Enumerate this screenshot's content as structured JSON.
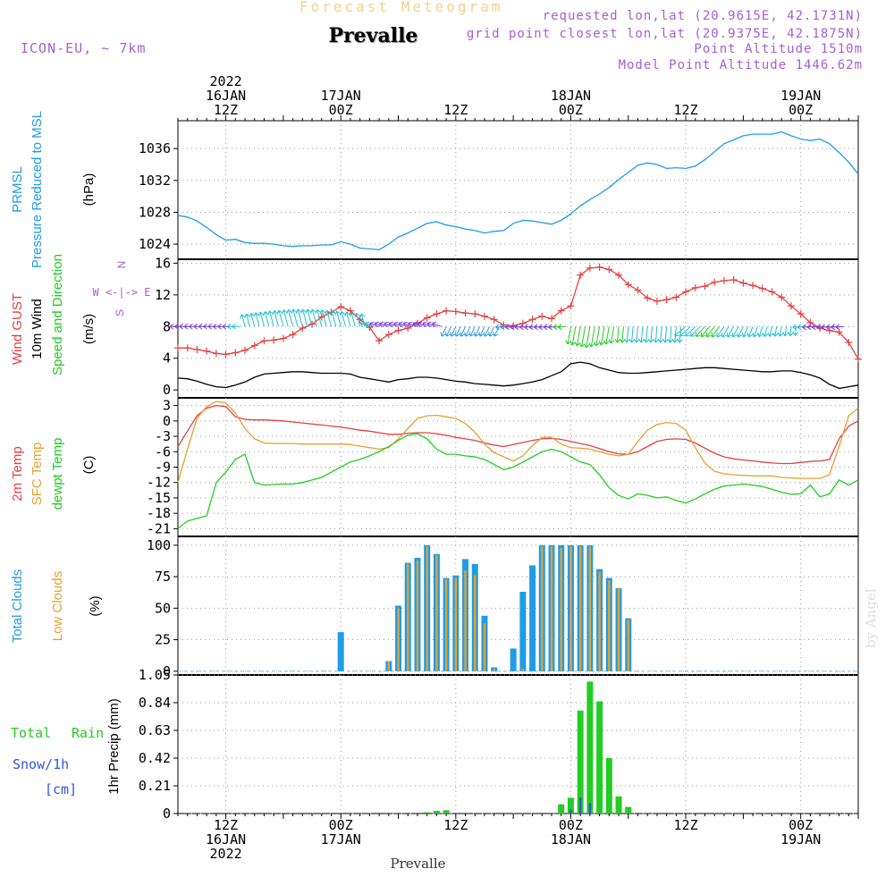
{
  "header": {
    "subtitle": "Forecast Meteogram",
    "title": "Prevalle",
    "model": "ICON-EU, ~ 7km",
    "requested": "requested lon,lat (20.9615E, 42.1731N)",
    "gridpoint": "grid point closest lon,lat (20.9375E, 42.1875N)",
    "point_alt": "Point Altitude 1510m",
    "model_alt": "Model Point Altitude 1446.62m",
    "footer": "Prevalle",
    "watermark": "by Angel"
  },
  "time_axis": {
    "top": [
      {
        "lines": [
          "2022",
          "16JAN",
          "12Z"
        ],
        "t": 12
      },
      {
        "lines": [
          "17JAN",
          "00Z"
        ],
        "t": 24
      },
      {
        "lines": [
          "12Z"
        ],
        "t": 36
      },
      {
        "lines": [
          "18JAN",
          "00Z"
        ],
        "t": 48
      },
      {
        "lines": [
          "12Z"
        ],
        "t": 60
      },
      {
        "lines": [
          "19JAN",
          "00Z"
        ],
        "t": 72
      }
    ],
    "bottom": [
      {
        "lines": [
          "12Z",
          "16JAN",
          "2022"
        ],
        "t": 12
      },
      {
        "lines": [
          "00Z",
          "17JAN"
        ],
        "t": 24
      },
      {
        "lines": [
          "12Z"
        ],
        "t": 36
      },
      {
        "lines": [
          "00Z",
          "18JAN"
        ],
        "t": 48
      },
      {
        "lines": [
          "12Z"
        ],
        "t": 60
      },
      {
        "lines": [
          "00Z",
          "19JAN"
        ],
        "t": 72
      }
    ]
  },
  "colors": {
    "prmsl": "#1f9ce6",
    "gust": "#e64040",
    "wind": "#000000",
    "dir": "#22cc22",
    "t2m": "#e64040",
    "sfc": "#e6a030",
    "dewpt": "#22cc22",
    "total_clouds": "#1f9ce6",
    "low_clouds": "#e6a030",
    "rain": "#22cc22",
    "snow": "#3355dd",
    "purple": "#a35fd6"
  },
  "panel_labels": {
    "p1": [
      "PRMSL",
      "Pressure Reduced to MSL"
    ],
    "p1_unit": "(hPa)",
    "p2": [
      "Wind GUST",
      "10m Wind",
      "Speed and Direction"
    ],
    "p2_unit": "(m/s)",
    "p2_compass": [
      "N",
      "W <-|-> E",
      "S"
    ],
    "p3": [
      "2m Temp",
      "SFC Temp",
      "dewpt Temp"
    ],
    "p3_unit": "(C)",
    "p4": [
      "Total Clouds",
      "Low Clouds"
    ],
    "p4_unit": "(%)",
    "p5": [
      "Total",
      "Rain",
      "Snow/1h",
      "[cm]"
    ],
    "p5_unit": "1hr Precip (mm)"
  },
  "chart_data": [
    {
      "type": "line",
      "title": "PRMSL Pressure Reduced to MSL",
      "ylabel": "(hPa)",
      "ylim": [
        1022.1,
        1039.5
      ],
      "yticks": [
        "1024",
        "1028",
        "1032",
        "1036"
      ],
      "x_hours": [
        7,
        8,
        9,
        10,
        11,
        12,
        13,
        14,
        15,
        16,
        17,
        18,
        19,
        20,
        21,
        22,
        23,
        24,
        25,
        26,
        27,
        28,
        29,
        30,
        31,
        32,
        33,
        34,
        35,
        36,
        37,
        38,
        39,
        40,
        41,
        42,
        43,
        44,
        45,
        46,
        47,
        48,
        49,
        50,
        51,
        52,
        53,
        54,
        55,
        56,
        57,
        58,
        59,
        60,
        61,
        62,
        63,
        64,
        65,
        66,
        67,
        68,
        69,
        70,
        71,
        72,
        73,
        74,
        75,
        76,
        77,
        78
      ],
      "values": [
        1027.6,
        1027.4,
        1026.9,
        1026.1,
        1025.2,
        1024.5,
        1024.6,
        1024.2,
        1024.1,
        1024.1,
        1024.0,
        1023.8,
        1023.7,
        1023.8,
        1023.8,
        1023.9,
        1023.9,
        1024.3,
        1024.0,
        1023.5,
        1023.4,
        1023.3,
        1024.0,
        1024.9,
        1025.4,
        1026.0,
        1026.6,
        1026.8,
        1026.4,
        1026.2,
        1025.9,
        1025.7,
        1025.4,
        1025.6,
        1025.7,
        1026.6,
        1027.0,
        1026.9,
        1026.7,
        1026.5,
        1027.0,
        1027.8,
        1028.8,
        1029.6,
        1030.3,
        1031.1,
        1032.1,
        1033.0,
        1033.9,
        1034.2,
        1034.0,
        1033.5,
        1033.6,
        1033.5,
        1033.8,
        1034.6,
        1035.6,
        1036.6,
        1037.1,
        1037.6,
        1037.8,
        1037.8,
        1037.8,
        1038.1,
        1037.6,
        1037.2,
        1037.0,
        1037.2,
        1036.6,
        1035.5,
        1034.3,
        1032.8
      ],
      "color": "#1f9ce6"
    },
    {
      "type": "line",
      "title": "Wind GUST, 10m Wind Speed and Direction",
      "ylabel": "(m/s)",
      "ylim": [
        -1,
        16.5
      ],
      "yticks": [
        "0",
        "4",
        "8",
        "12",
        "16"
      ],
      "x_hours": [
        7,
        8,
        9,
        10,
        11,
        12,
        13,
        14,
        15,
        16,
        17,
        18,
        19,
        20,
        21,
        22,
        23,
        24,
        25,
        26,
        27,
        28,
        29,
        30,
        31,
        32,
        33,
        34,
        35,
        36,
        37,
        38,
        39,
        40,
        41,
        42,
        43,
        44,
        45,
        46,
        47,
        48,
        49,
        50,
        51,
        52,
        53,
        54,
        55,
        56,
        57,
        58,
        59,
        60,
        61,
        62,
        63,
        64,
        65,
        66,
        67,
        68,
        69,
        70,
        71,
        72,
        73,
        74,
        75,
        76,
        77,
        78
      ],
      "series": [
        {
          "name": "Wind GUST",
          "color": "#e64040",
          "values": [
            5.3,
            5.3,
            5.1,
            4.9,
            4.6,
            4.5,
            4.7,
            5.0,
            5.6,
            6.2,
            6.3,
            6.5,
            7.0,
            7.8,
            8.3,
            9.2,
            9.8,
            10.5,
            10.0,
            8.9,
            7.9,
            6.2,
            7.0,
            7.5,
            7.8,
            8.4,
            9.1,
            9.6,
            10.0,
            9.9,
            9.7,
            9.6,
            9.3,
            8.9,
            8.2,
            8.1,
            8.4,
            8.9,
            9.3,
            9.0,
            10.0,
            10.6,
            14.5,
            15.4,
            15.5,
            15.2,
            14.5,
            13.3,
            12.6,
            11.6,
            11.2,
            11.4,
            11.7,
            12.4,
            12.9,
            13.1,
            13.6,
            13.8,
            13.9,
            13.5,
            13.2,
            12.8,
            12.4,
            11.7,
            10.6,
            9.6,
            8.5,
            7.8,
            7.5,
            7.3,
            6.0,
            3.9
          ]
        },
        {
          "name": "10m Wind",
          "color": "#000000",
          "values": [
            1.5,
            1.4,
            1.1,
            0.7,
            0.4,
            0.3,
            0.6,
            1.0,
            1.6,
            2.0,
            2.1,
            2.2,
            2.3,
            2.3,
            2.2,
            2.1,
            2.1,
            2.1,
            2.0,
            1.6,
            1.4,
            1.2,
            1.0,
            1.3,
            1.4,
            1.6,
            1.6,
            1.5,
            1.3,
            1.1,
            1.0,
            0.8,
            0.7,
            0.6,
            0.5,
            0.6,
            0.8,
            1.0,
            1.3,
            1.8,
            2.3,
            3.3,
            3.5,
            3.3,
            2.8,
            2.5,
            2.2,
            2.1,
            2.1,
            2.2,
            2.3,
            2.4,
            2.5,
            2.6,
            2.7,
            2.8,
            2.8,
            2.7,
            2.6,
            2.5,
            2.4,
            2.3,
            2.3,
            2.4,
            2.4,
            2.2,
            1.9,
            1.5,
            0.7,
            0.2,
            0.4,
            0.6
          ]
        }
      ],
      "direction_arrows_level_ms": 8
    },
    {
      "type": "line",
      "title": "2m Temp, SFC Temp, dewpt Temp",
      "ylabel": "(C)",
      "ylim": [
        -22.5,
        4.5
      ],
      "yticks": [
        "3",
        "0",
        "-3",
        "-6",
        "-9",
        "-12",
        "-15",
        "-18",
        "-21"
      ],
      "x_hours": [
        7,
        8,
        9,
        10,
        11,
        12,
        13,
        14,
        15,
        16,
        17,
        18,
        19,
        20,
        21,
        22,
        23,
        24,
        25,
        26,
        27,
        28,
        29,
        30,
        31,
        32,
        33,
        34,
        35,
        36,
        37,
        38,
        39,
        40,
        41,
        42,
        43,
        44,
        45,
        46,
        47,
        48,
        49,
        50,
        51,
        52,
        53,
        54,
        55,
        56,
        57,
        58,
        59,
        60,
        61,
        62,
        63,
        64,
        65,
        66,
        67,
        68,
        69,
        70,
        71,
        72,
        73,
        74,
        75,
        76,
        77,
        78
      ],
      "series": [
        {
          "name": "2m Temp",
          "color": "#e64040",
          "values": [
            -5,
            -2,
            1,
            2.5,
            3,
            2.8,
            0.8,
            0.3,
            0.2,
            0.2,
            0.1,
            0,
            -0.2,
            -0.4,
            -0.6,
            -0.8,
            -1.0,
            -1.2,
            -1.5,
            -1.8,
            -2,
            -2.3,
            -2.6,
            -2.6,
            -2.4,
            -2.3,
            -2.3,
            -2.5,
            -2.8,
            -3.2,
            -3.5,
            -3.8,
            -4.3,
            -4.7,
            -5,
            -4.6,
            -4.2,
            -3.8,
            -3.5,
            -3.4,
            -3.6,
            -4,
            -4.4,
            -4.8,
            -5.4,
            -6,
            -6.4,
            -6.5,
            -6,
            -5,
            -4,
            -3.6,
            -3.5,
            -3.6,
            -4.3,
            -5.3,
            -6.3,
            -7,
            -7.4,
            -7.6,
            -7.8,
            -8,
            -8.2,
            -8.3,
            -8.3,
            -8.1,
            -7.9,
            -7.8,
            -7.5,
            -3.5,
            -1,
            0
          ]
        },
        {
          "name": "SFC Temp",
          "color": "#e6a030",
          "values": [
            -12,
            -5.5,
            0.5,
            2.8,
            3.8,
            3.5,
            1.5,
            -1.5,
            -3.5,
            -4.3,
            -4.4,
            -4.4,
            -4.4,
            -4.5,
            -4.5,
            -4.5,
            -4.5,
            -4.5,
            -4.6,
            -4.9,
            -5.2,
            -5.5,
            -5.2,
            -3.5,
            -1.5,
            0.5,
            1,
            1.1,
            0.8,
            0.5,
            -0.5,
            -2.2,
            -4.5,
            -6.2,
            -7,
            -7.8,
            -6.8,
            -4.8,
            -3.2,
            -3.2,
            -4.5,
            -5.2,
            -5.3,
            -5.5,
            -6,
            -6.5,
            -6.8,
            -6.5,
            -4,
            -1.8,
            -0.7,
            -0.3,
            -0.5,
            -1.8,
            -5.2,
            -8.2,
            -9.8,
            -10.3,
            -10.5,
            -10.6,
            -10.7,
            -10.7,
            -10.7,
            -11.0,
            -11.1,
            -11.2,
            -11.2,
            -11.2,
            -10.5,
            -5,
            1,
            2.5
          ]
        },
        {
          "name": "dewpt Temp",
          "color": "#22cc22",
          "values": [
            -21,
            -19.5,
            -19,
            -18.5,
            -12,
            -10,
            -7.5,
            -6.5,
            -12,
            -12.5,
            -12.4,
            -12.3,
            -12.3,
            -12,
            -11.5,
            -11,
            -10,
            -9,
            -8,
            -7.5,
            -6.8,
            -6,
            -5,
            -3.8,
            -2.8,
            -2.5,
            -3.5,
            -5.5,
            -6.5,
            -6.5,
            -6.8,
            -7,
            -7.5,
            -8.5,
            -9.5,
            -9,
            -8,
            -7,
            -6,
            -5.5,
            -6,
            -7,
            -8,
            -8.5,
            -10.5,
            -13,
            -14.5,
            -15.2,
            -14.2,
            -14.5,
            -15,
            -14.8,
            -15.5,
            -16,
            -15.2,
            -14.2,
            -13.3,
            -12.7,
            -12.5,
            -12.3,
            -12.5,
            -12.8,
            -13.3,
            -13.9,
            -14.3,
            -14.2,
            -12.5,
            -14.8,
            -14.2,
            -11.5,
            -12.5,
            -11.5
          ]
        }
      ]
    },
    {
      "type": "bar",
      "title": "Total Clouds, Low Clouds",
      "ylabel": "(%)",
      "ylim": [
        -3,
        107
      ],
      "yticks": [
        "0",
        "25",
        "50",
        "75",
        "100"
      ],
      "x_hours": [
        24,
        29,
        30,
        31,
        32,
        33,
        34,
        35,
        36,
        37,
        38,
        39,
        40,
        41,
        42,
        43,
        44,
        45,
        46,
        47,
        48,
        49,
        50,
        51,
        52,
        53,
        54,
        55,
        56,
        57
      ],
      "series": [
        {
          "name": "Total Clouds",
          "color": "#1f9ce6",
          "values": [
            31,
            8,
            52,
            86,
            90,
            100,
            93,
            74,
            76,
            89,
            85,
            44,
            3,
            0,
            18,
            63,
            84,
            100,
            100,
            100,
            100,
            100,
            100,
            81,
            74,
            66,
            42,
            0,
            0,
            0
          ]
        },
        {
          "name": "Low Clouds",
          "color": "#e6a030",
          "values": [
            0,
            8,
            50,
            85,
            88,
            99,
            92,
            73,
            74,
            80,
            76,
            38,
            2,
            0,
            0,
            2,
            0,
            99,
            99,
            98,
            99,
            99,
            99,
            79,
            72,
            66,
            41,
            0,
            0,
            0
          ]
        }
      ]
    },
    {
      "type": "bar",
      "title": "1hr Precip",
      "ylabel": "1hr Precip (mm)",
      "ylim": [
        0,
        1.05
      ],
      "yticks": [
        "0",
        "0.21",
        "0.42",
        "0.63",
        "0.84",
        "1.05"
      ],
      "x_hours": [
        33,
        34,
        35,
        47,
        48,
        49,
        50,
        51,
        52,
        53,
        54
      ],
      "series": [
        {
          "name": "Total Rain",
          "color": "#22cc22",
          "values": [
            0.01,
            0.02,
            0.025,
            0.07,
            0.12,
            0.78,
            1.0,
            0.85,
            0.42,
            0.13,
            0.05
          ]
        },
        {
          "name": "Snow/1h",
          "color": "#3355dd",
          "values": [
            0,
            0,
            0,
            0,
            0.03,
            0.12,
            0.08,
            0,
            0,
            0,
            0
          ]
        }
      ]
    }
  ]
}
